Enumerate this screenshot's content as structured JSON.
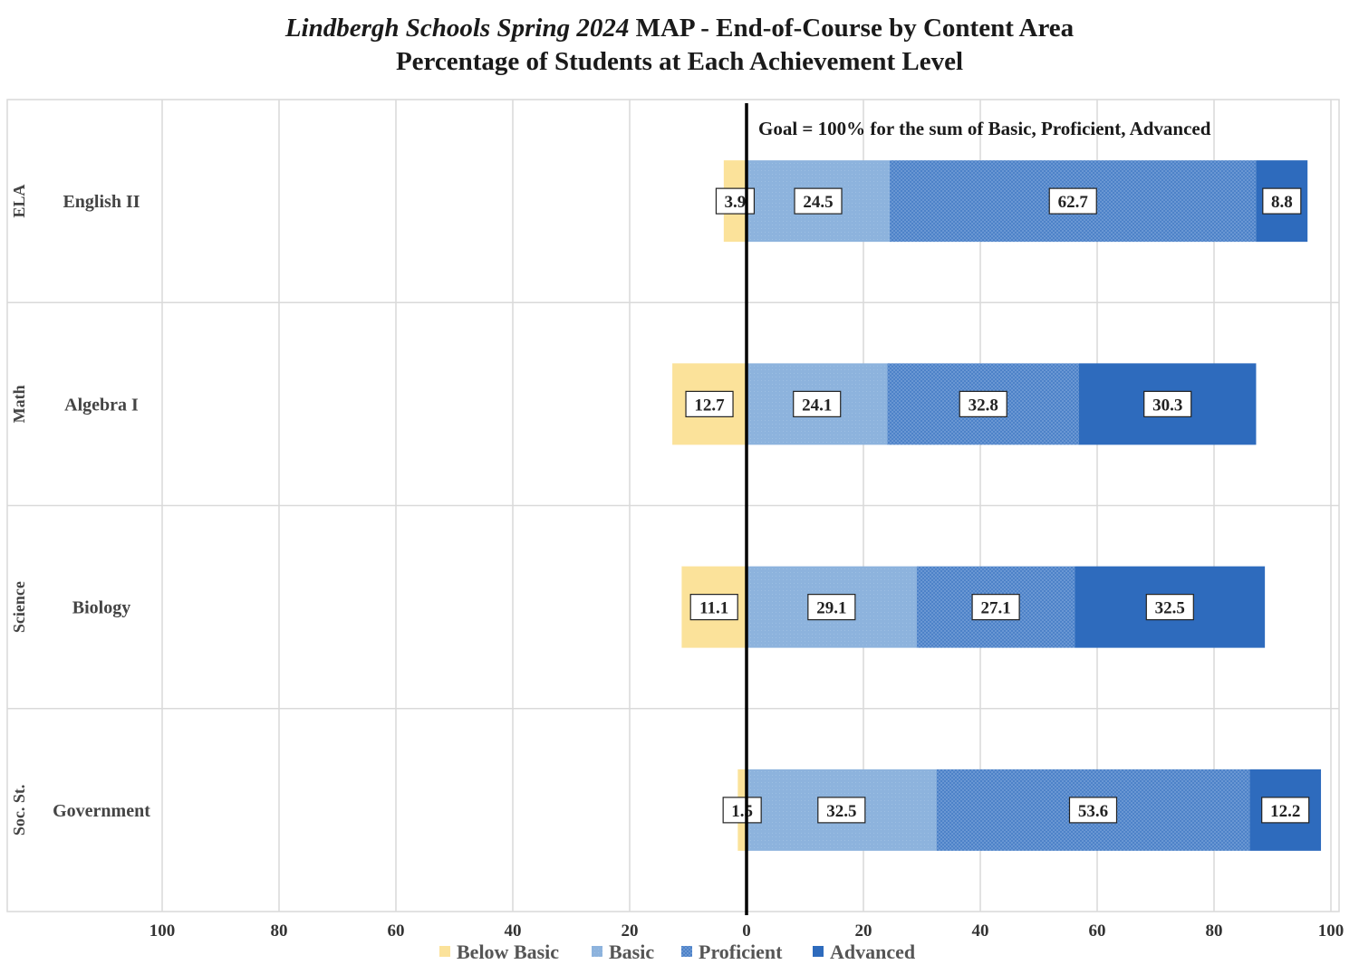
{
  "title": {
    "italic_part": "Lindbergh Schools Spring 2024",
    "rest_part": " MAP - End-of-Course by Content Area",
    "line2": "Percentage of Students at Each Achievement Level"
  },
  "goal_text": "Goal = 100% for the sum of Basic, Proficient, Advanced",
  "chart_data": {
    "type": "bar",
    "orientation": "horizontal",
    "stacked": true,
    "diverging": true,
    "xlim": [
      -100,
      100
    ],
    "x_ticks": [
      "100",
      "80",
      "60",
      "40",
      "20",
      "0",
      "20",
      "40",
      "60",
      "80",
      "100"
    ],
    "grid": true,
    "legend_position": "bottom",
    "rows": [
      {
        "group": "ELA",
        "course": "English II"
      },
      {
        "group": "Math",
        "course": "Algebra I"
      },
      {
        "group": "Science",
        "course": "Biology"
      },
      {
        "group": "Soc. St.",
        "course": "Government"
      }
    ],
    "series": [
      {
        "name": "Below Basic",
        "side": "negative",
        "color": "#fbe29a",
        "values": [
          3.9,
          12.7,
          11.1,
          1.5
        ]
      },
      {
        "name": "Basic",
        "side": "positive",
        "color": "#8db3dd",
        "values": [
          24.5,
          24.1,
          29.1,
          32.5
        ]
      },
      {
        "name": "Proficient",
        "side": "positive",
        "color": "#5a8cce",
        "values": [
          62.7,
          32.8,
          27.1,
          53.6
        ]
      },
      {
        "name": "Advanced",
        "side": "positive",
        "color": "#2e6bbd",
        "values": [
          8.8,
          30.3,
          32.5,
          12.2
        ]
      }
    ]
  }
}
